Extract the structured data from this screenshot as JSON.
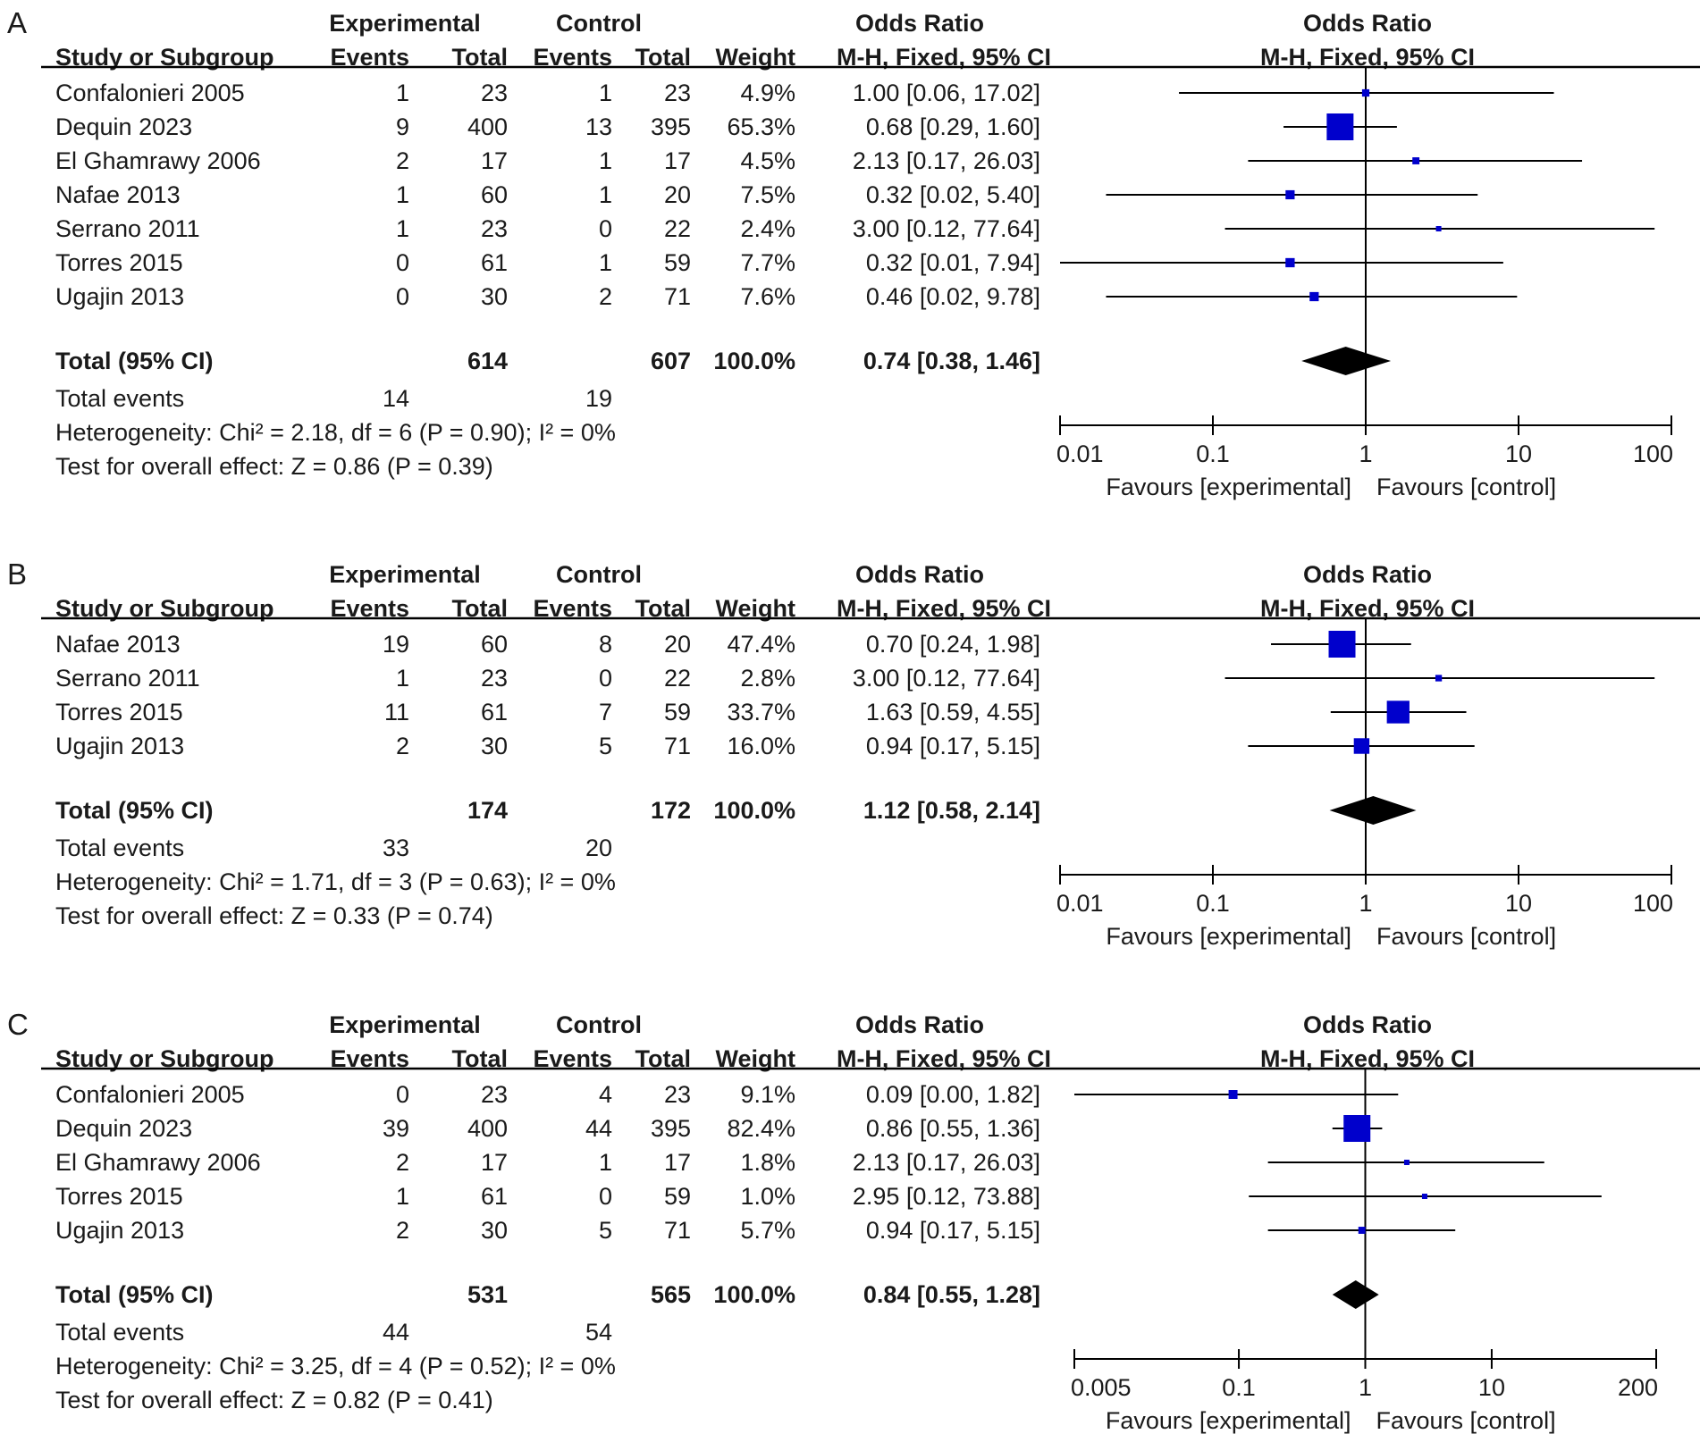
{
  "colors": {
    "marker": "#0000cc",
    "diamond": "#000000",
    "text": "#1a1a1a",
    "line": "#000000"
  },
  "headers": {
    "experimental": "Experimental",
    "control": "Control",
    "odds_ratio": "Odds Ratio",
    "study": "Study or Subgroup",
    "events": "Events",
    "total": "Total",
    "weight": "Weight",
    "method": "M-H, Fixed, 95% CI"
  },
  "favours": {
    "left": "Favours [experimental]",
    "right": "Favours [control]"
  },
  "chart_data": [
    {
      "type": "forest",
      "panel": "A",
      "axis": {
        "scale": "log",
        "ticks": [
          0.01,
          0.1,
          1,
          10,
          100
        ],
        "tick_labels": [
          "0.01",
          "0.1",
          "1",
          "10",
          "100"
        ],
        "xlim": [
          0.01,
          100
        ]
      },
      "studies": [
        {
          "name": "Confalonieri 2005",
          "exp_events": "1",
          "exp_total": "23",
          "ctl_events": "1",
          "ctl_total": "23",
          "weight": "4.9%",
          "ci_text": "1.00 [0.06, 17.02]",
          "or": 1.0,
          "lo": 0.06,
          "hi": 17.02,
          "w": 4.9
        },
        {
          "name": "Dequin 2023",
          "exp_events": "9",
          "exp_total": "400",
          "ctl_events": "13",
          "ctl_total": "395",
          "weight": "65.3%",
          "ci_text": "0.68 [0.29, 1.60]",
          "or": 0.68,
          "lo": 0.29,
          "hi": 1.6,
          "w": 65.3
        },
        {
          "name": "El Ghamrawy 2006",
          "exp_events": "2",
          "exp_total": "17",
          "ctl_events": "1",
          "ctl_total": "17",
          "weight": "4.5%",
          "ci_text": "2.13 [0.17, 26.03]",
          "or": 2.13,
          "lo": 0.17,
          "hi": 26.03,
          "w": 4.5
        },
        {
          "name": "Nafae 2013",
          "exp_events": "1",
          "exp_total": "60",
          "ctl_events": "1",
          "ctl_total": "20",
          "weight": "7.5%",
          "ci_text": "0.32 [0.02, 5.40]",
          "or": 0.32,
          "lo": 0.02,
          "hi": 5.4,
          "w": 7.5
        },
        {
          "name": "Serrano  2011",
          "exp_events": "1",
          "exp_total": "23",
          "ctl_events": "0",
          "ctl_total": "22",
          "weight": "2.4%",
          "ci_text": "3.00 [0.12, 77.64]",
          "or": 3.0,
          "lo": 0.12,
          "hi": 77.64,
          "w": 2.4
        },
        {
          "name": "Torres 2015",
          "exp_events": "0",
          "exp_total": "61",
          "ctl_events": "1",
          "ctl_total": "59",
          "weight": "7.7%",
          "ci_text": "0.32 [0.01, 7.94]",
          "or": 0.32,
          "lo": 0.01,
          "hi": 7.94,
          "w": 7.7
        },
        {
          "name": "Ugajin 2013",
          "exp_events": "0",
          "exp_total": "30",
          "ctl_events": "2",
          "ctl_total": "71",
          "weight": "7.6%",
          "ci_text": "0.46 [0.02, 9.78]",
          "or": 0.46,
          "lo": 0.02,
          "hi": 9.78,
          "w": 7.6
        }
      ],
      "total": {
        "label": "Total (95% CI)",
        "exp_total": "614",
        "ctl_total": "607",
        "weight": "100.0%",
        "ci_text": "0.74 [0.38, 1.46]",
        "or": 0.74,
        "lo": 0.38,
        "hi": 1.46
      },
      "total_events": {
        "label": "Total events",
        "exp": "14",
        "ctl": "19"
      },
      "heterogeneity": "Heterogeneity: Chi² = 2.18, df = 6 (P = 0.90); I² = 0%",
      "overall": "Test for overall effect: Z = 0.86 (P = 0.39)"
    },
    {
      "type": "forest",
      "panel": "B",
      "axis": {
        "scale": "log",
        "ticks": [
          0.01,
          0.1,
          1,
          10,
          100
        ],
        "tick_labels": [
          "0.01",
          "0.1",
          "1",
          "10",
          "100"
        ],
        "xlim": [
          0.01,
          100
        ]
      },
      "studies": [
        {
          "name": "Nafae 2013",
          "exp_events": "19",
          "exp_total": "60",
          "ctl_events": "8",
          "ctl_total": "20",
          "weight": "47.4%",
          "ci_text": "0.70 [0.24, 1.98]",
          "or": 0.7,
          "lo": 0.24,
          "hi": 1.98,
          "w": 47.4
        },
        {
          "name": "Serrano  2011",
          "exp_events": "1",
          "exp_total": "23",
          "ctl_events": "0",
          "ctl_total": "22",
          "weight": "2.8%",
          "ci_text": "3.00 [0.12, 77.64]",
          "or": 3.0,
          "lo": 0.12,
          "hi": 77.64,
          "w": 2.8
        },
        {
          "name": "Torres 2015",
          "exp_events": "11",
          "exp_total": "61",
          "ctl_events": "7",
          "ctl_total": "59",
          "weight": "33.7%",
          "ci_text": "1.63 [0.59, 4.55]",
          "or": 1.63,
          "lo": 0.59,
          "hi": 4.55,
          "w": 33.7
        },
        {
          "name": "Ugajin 2013",
          "exp_events": "2",
          "exp_total": "30",
          "ctl_events": "5",
          "ctl_total": "71",
          "weight": "16.0%",
          "ci_text": "0.94 [0.17, 5.15]",
          "or": 0.94,
          "lo": 0.17,
          "hi": 5.15,
          "w": 16.0
        }
      ],
      "total": {
        "label": "Total (95% CI)",
        "exp_total": "174",
        "ctl_total": "172",
        "weight": "100.0%",
        "ci_text": "1.12 [0.58, 2.14]",
        "or": 1.12,
        "lo": 0.58,
        "hi": 2.14
      },
      "total_events": {
        "label": "Total events",
        "exp": "33",
        "ctl": "20"
      },
      "heterogeneity": "Heterogeneity: Chi² = 1.71, df = 3 (P = 0.63); I² = 0%",
      "overall": "Test for overall effect: Z = 0.33 (P = 0.74)"
    },
    {
      "type": "forest",
      "panel": "C",
      "axis": {
        "scale": "log",
        "ticks": [
          0.005,
          0.1,
          1,
          10,
          200
        ],
        "tick_labels": [
          "0.005",
          "0.1",
          "1",
          "10",
          "200"
        ],
        "xlim": [
          0.005,
          200
        ]
      },
      "studies": [
        {
          "name": "Confalonieri 2005",
          "exp_events": "0",
          "exp_total": "23",
          "ctl_events": "4",
          "ctl_total": "23",
          "weight": "9.1%",
          "ci_text": "0.09 [0.00, 1.82]",
          "or": 0.09,
          "lo": 0.005,
          "hi": 1.82,
          "w": 9.1
        },
        {
          "name": "Dequin 2023",
          "exp_events": "39",
          "exp_total": "400",
          "ctl_events": "44",
          "ctl_total": "395",
          "weight": "82.4%",
          "ci_text": "0.86 [0.55, 1.36]",
          "or": 0.86,
          "lo": 0.55,
          "hi": 1.36,
          "w": 82.4
        },
        {
          "name": "El Ghamrawy 2006",
          "exp_events": "2",
          "exp_total": "17",
          "ctl_events": "1",
          "ctl_total": "17",
          "weight": "1.8%",
          "ci_text": "2.13 [0.17, 26.03]",
          "or": 2.13,
          "lo": 0.17,
          "hi": 26.03,
          "w": 1.8
        },
        {
          "name": "Torres 2015",
          "exp_events": "1",
          "exp_total": "61",
          "ctl_events": "0",
          "ctl_total": "59",
          "weight": "1.0%",
          "ci_text": "2.95 [0.12, 73.88]",
          "or": 2.95,
          "lo": 0.12,
          "hi": 73.88,
          "w": 1.0
        },
        {
          "name": "Ugajin 2013",
          "exp_events": "2",
          "exp_total": "30",
          "ctl_events": "5",
          "ctl_total": "71",
          "weight": "5.7%",
          "ci_text": "0.94 [0.17, 5.15]",
          "or": 0.94,
          "lo": 0.17,
          "hi": 5.15,
          "w": 5.7
        }
      ],
      "total": {
        "label": "Total (95% CI)",
        "exp_total": "531",
        "ctl_total": "565",
        "weight": "100.0%",
        "ci_text": "0.84 [0.55, 1.28]",
        "or": 0.84,
        "lo": 0.55,
        "hi": 1.28
      },
      "total_events": {
        "label": "Total events",
        "exp": "44",
        "ctl": "54"
      },
      "heterogeneity": "Heterogeneity: Chi² = 3.25, df = 4 (P = 0.52); I² = 0%",
      "overall": "Test for overall effect: Z = 0.82 (P = 0.41)"
    }
  ]
}
